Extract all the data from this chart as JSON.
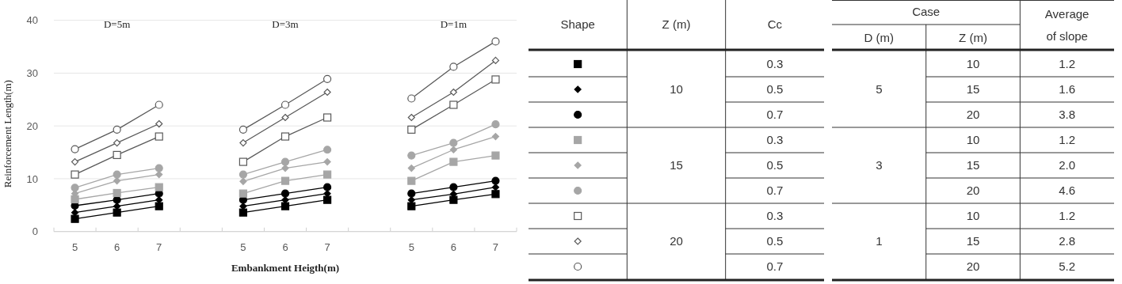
{
  "chart_data": [
    {
      "type": "line",
      "xlabel": "Embankment Heigth(m)",
      "ylabel": "Reinforcement Length(m)",
      "annotations": [
        "D=5m",
        "D=3m",
        "D=1m"
      ],
      "categories": [
        "5",
        "6",
        "7",
        null,
        "5",
        "6",
        "7",
        null,
        "5",
        "6",
        "7"
      ],
      "ylim": [
        0,
        40
      ],
      "yticks": [
        0,
        10,
        20,
        30,
        40
      ],
      "grid": "y",
      "series": [
        {
          "color": "#000000",
          "marker": "square",
          "values": [
            2.4,
            3.6,
            4.8,
            null,
            3.6,
            4.8,
            6.0,
            null,
            4.8,
            6.0,
            7.1
          ]
        },
        {
          "color": "#000000",
          "marker": "diamond",
          "values": [
            3.6,
            4.8,
            6.0,
            null,
            4.8,
            6.0,
            7.2,
            null,
            6.0,
            7.1,
            8.4
          ]
        },
        {
          "color": "#000000",
          "marker": "circle",
          "values": [
            4.9,
            6.0,
            7.2,
            null,
            6.0,
            7.2,
            8.4,
            null,
            7.2,
            8.4,
            9.6
          ]
        },
        {
          "color": "#a6a6a6",
          "marker": "square",
          "values": [
            6.1,
            7.3,
            8.4,
            null,
            7.2,
            9.6,
            10.8,
            null,
            9.6,
            13.2,
            14.4
          ]
        },
        {
          "color": "#a6a6a6",
          "marker": "diamond",
          "values": [
            7.2,
            9.6,
            10.8,
            null,
            9.5,
            12.0,
            13.2,
            null,
            12.0,
            15.5,
            18.0
          ]
        },
        {
          "color": "#a6a6a6",
          "marker": "circle",
          "values": [
            8.3,
            10.8,
            12.0,
            null,
            10.8,
            13.2,
            15.5,
            null,
            14.4,
            16.8,
            20.3
          ]
        },
        {
          "color": "#595959",
          "marker": "square-open",
          "values": [
            10.8,
            14.5,
            18.0,
            null,
            13.2,
            18.0,
            21.6,
            null,
            19.3,
            24.0,
            28.8
          ]
        },
        {
          "color": "#595959",
          "marker": "diamond-open",
          "values": [
            13.2,
            16.8,
            20.4,
            null,
            16.8,
            21.6,
            26.4,
            null,
            21.6,
            26.4,
            32.4
          ]
        },
        {
          "color": "#595959",
          "marker": "circle-open",
          "values": [
            15.6,
            19.3,
            24.0,
            null,
            19.3,
            24.0,
            28.9,
            null,
            25.2,
            31.2,
            36.0
          ]
        }
      ]
    },
    {
      "type": "other",
      "categories": [
        "Shape",
        "Z (m)",
        "Cc"
      ],
      "cell_labels": [
        [
          "10",
          "0.3"
        ],
        [
          null,
          "0.5"
        ],
        [
          null,
          "0.7"
        ],
        [
          "15",
          "0.3"
        ],
        [
          null,
          "0.5"
        ],
        [
          null,
          "0.7"
        ],
        [
          "20",
          "0.3"
        ],
        [
          null,
          "0.5"
        ],
        [
          null,
          "0.7"
        ]
      ]
    },
    {
      "type": "other",
      "annotations": [
        "Case"
      ],
      "categories": [
        "D (m)",
        "Z (m)",
        "Average of slope"
      ],
      "cell_labels": [
        [
          "5",
          "10",
          "1.2"
        ],
        [
          null,
          "15",
          "1.6"
        ],
        [
          null,
          "20",
          "3.8"
        ],
        [
          "3",
          "10",
          "1.2"
        ],
        [
          null,
          "15",
          "2.0"
        ],
        [
          null,
          "20",
          "4.6"
        ],
        [
          "1",
          "10",
          "1.2"
        ],
        [
          null,
          "15",
          "2.8"
        ],
        [
          null,
          "20",
          "5.2"
        ]
      ]
    }
  ]
}
